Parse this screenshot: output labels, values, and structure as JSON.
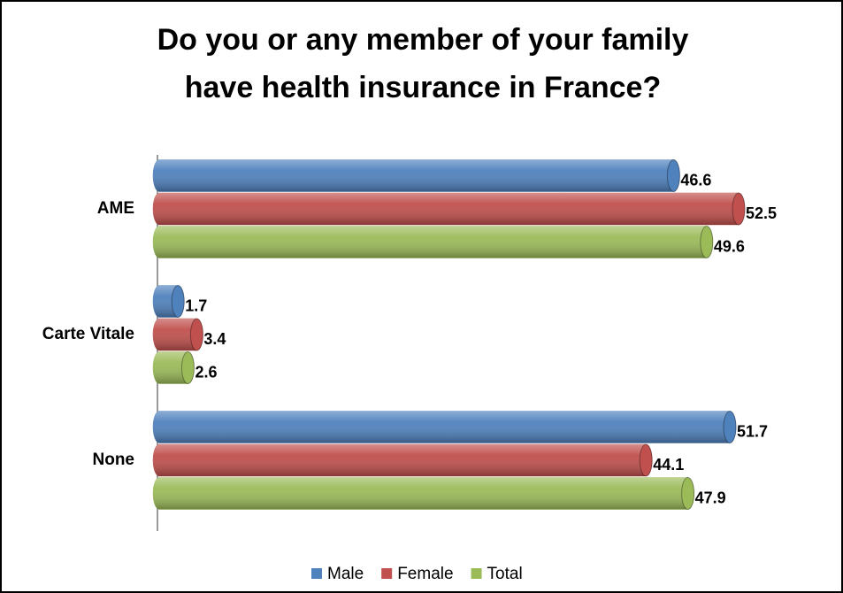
{
  "chart_data": {
    "type": "bar",
    "orientation": "horizontal",
    "title": [
      "Do you or any member of your family",
      "have health insurance in France?"
    ],
    "categories": [
      "AME",
      "Carte Vitale",
      "None"
    ],
    "series": [
      {
        "name": "Male",
        "color": "#4f81bd",
        "values": [
          46.6,
          1.7,
          51.7
        ]
      },
      {
        "name": "Female",
        "color": "#c0504d",
        "values": [
          52.5,
          3.4,
          44.1
        ]
      },
      {
        "name": "Total",
        "color": "#9bbb59",
        "values": [
          49.6,
          2.6,
          47.9
        ]
      }
    ],
    "legend": "bottom"
  }
}
